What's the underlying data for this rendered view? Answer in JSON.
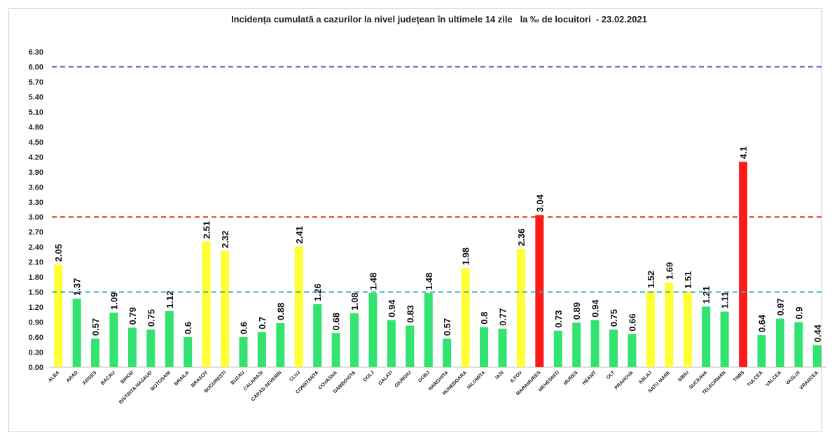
{
  "chart_data": {
    "type": "bar",
    "title": "Incidența cumulată a cazurilor la nivel județean în ultimele 14 zile   la ‰ de locuitori  - 23.02.2021",
    "xlabel": "",
    "ylabel": "",
    "ylim": [
      0,
      6.3
    ],
    "yticks": [
      "0.00",
      "0.30",
      "0.60",
      "0.90",
      "1.20",
      "1.50",
      "1.80",
      "2.10",
      "2.40",
      "2.70",
      "3.00",
      "3.30",
      "3.60",
      "3.90",
      "4.20",
      "4.50",
      "4.80",
      "5.10",
      "5.40",
      "5.70",
      "6.00",
      "6.30"
    ],
    "grid": false,
    "legend": "none",
    "categories": [
      "ALBA",
      "ARAD",
      "ARGES",
      "BACAU",
      "BIHOR",
      "BISTRITA NASAUD",
      "BOTOSANI",
      "BRAILA",
      "BRASOV",
      "BUCURESTI",
      "BUZAU",
      "CALARASI",
      "CARAS-SEVERIN",
      "CLUJ",
      "CONSTANTA",
      "COVASNA",
      "DAMBOVITA",
      "DOLJ",
      "GALATI",
      "GIURGIU",
      "GORJ",
      "HARGHITA",
      "HUNEDOARA",
      "IALOMITA",
      "IASI",
      "ILFOV",
      "MARAMURES",
      "MEHEDINTI",
      "MURES",
      "NEAMT",
      "OLT",
      "PRAHOVA",
      "SALAJ",
      "SATU MARE",
      "SIBIU",
      "SUCEAVA",
      "TELEORMAN",
      "TIMIS",
      "TULCEA",
      "VALCEA",
      "VASLUI",
      "VRANCEA"
    ],
    "values": [
      2.05,
      1.37,
      0.57,
      1.09,
      0.79,
      0.75,
      1.12,
      0.6,
      2.51,
      2.32,
      0.6,
      0.7,
      0.88,
      2.41,
      1.26,
      0.68,
      1.08,
      1.48,
      0.94,
      0.83,
      1.48,
      0.57,
      1.98,
      0.8,
      0.77,
      2.36,
      3.04,
      0.73,
      0.89,
      0.94,
      0.75,
      0.66,
      1.52,
      1.69,
      1.51,
      1.21,
      1.11,
      4.1,
      0.64,
      0.97,
      0.9,
      0.44
    ],
    "value_labels": [
      "2.05",
      "1.37",
      "0.57",
      "1.09",
      "0.79",
      "0.75",
      "1.12",
      "0.6",
      "2.51",
      "2.32",
      "0.6",
      "0.7",
      "0.88",
      "2.41",
      "1.26",
      "0.68",
      "1.08",
      "1.48",
      "0.94",
      "0.83",
      "1.48",
      "0.57",
      "1.98",
      "0.8",
      "0.77",
      "2.36",
      "3.04",
      "0.73",
      "0.89",
      "0.94",
      "0.75",
      "0.66",
      "1.52",
      "1.69",
      "1.51",
      "1.21",
      "1.11",
      "4.1",
      "0.64",
      "0.97",
      "0.9",
      "0.44"
    ],
    "thresholds": [
      {
        "value": 1.5,
        "color": "#2bb3c0"
      },
      {
        "value": 3.0,
        "color": "#e0312f"
      },
      {
        "value": 6.0,
        "color": "#7b3fc4"
      }
    ],
    "colors": {
      "green": "#33e36f",
      "yellow": "#ffff33",
      "red": "#ff1a1a"
    },
    "color_rule": "green < 1.5 <= yellow < 3.0 <= red"
  }
}
